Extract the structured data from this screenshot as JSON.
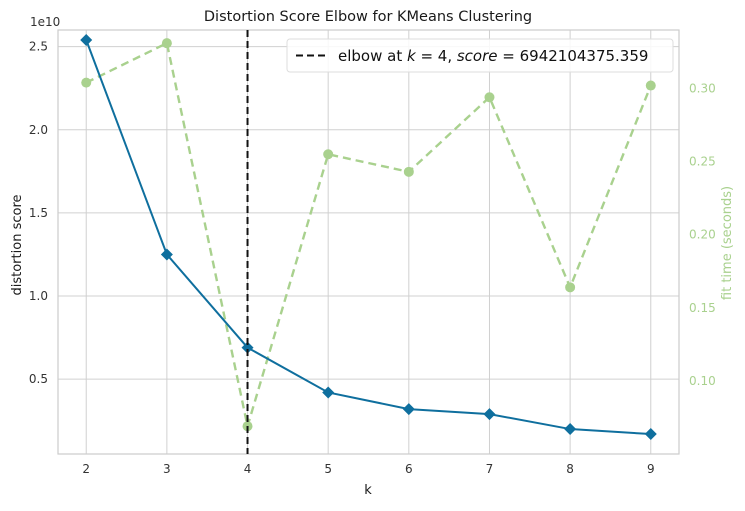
{
  "chart_data": {
    "type": "line",
    "title": "Distortion Score Elbow for KMeans Clustering",
    "xlabel": "k",
    "ylabel": "distortion score",
    "ylabel_right": "fit time (seconds)",
    "offset_text": "1e10",
    "x": [
      2,
      3,
      4,
      5,
      6,
      7,
      8,
      9
    ],
    "xlim": [
      1.65,
      9.35
    ],
    "ylim": [
      0.05,
      2.6
    ],
    "y2lim": [
      0.05,
      0.34
    ],
    "x_ticks": [
      2,
      3,
      4,
      5,
      6,
      7,
      8,
      9
    ],
    "y_ticks": [
      0.5,
      1.0,
      1.5,
      2.0,
      2.5
    ],
    "y_tick_labels": [
      "0.5",
      "1.0",
      "1.5",
      "2.0",
      "2.5"
    ],
    "y2_ticks": [
      0.1,
      0.15,
      0.2,
      0.25,
      0.3
    ],
    "y2_tick_labels": [
      "0.10",
      "0.15",
      "0.20",
      "0.25",
      "0.30"
    ],
    "grid": true,
    "legend_position": "top-right",
    "series": [
      {
        "axis": "left",
        "color": "#0f6f9e",
        "line_style": "solid",
        "marker": "diamond",
        "values": [
          2.54,
          1.25,
          0.69,
          0.42,
          0.32,
          0.29,
          0.2,
          0.17
        ]
      },
      {
        "axis": "right",
        "color": "#a9d18e",
        "line_style": "dashed",
        "marker": "circle",
        "values": [
          0.304,
          0.331,
          0.069,
          0.255,
          0.243,
          0.294,
          0.164,
          0.302
        ]
      }
    ],
    "elbow": {
      "x": 4,
      "legend_label": "elbow at $k=4$, $score=6942104375.359$",
      "legend_prefix": "elbow at ",
      "legend_k_symbol": "k",
      "legend_k_value": " = 4, ",
      "legend_score_symbol": "score",
      "legend_score_value": " = 6942104375.359"
    }
  }
}
